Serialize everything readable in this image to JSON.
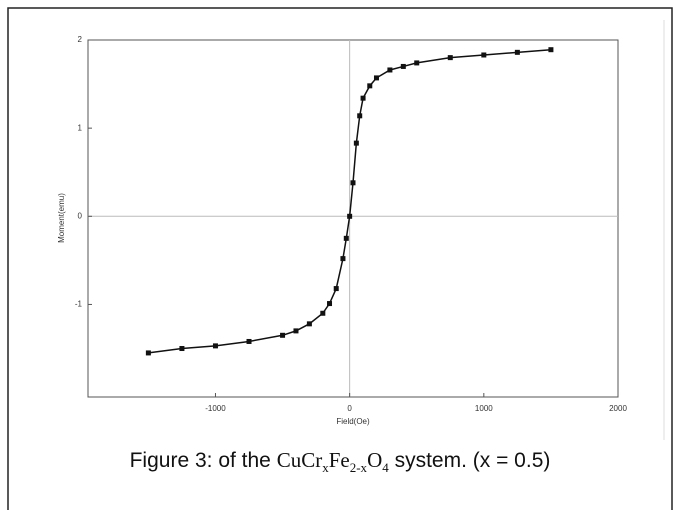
{
  "chart_data": {
    "type": "line",
    "x_label": "Field(Oe)",
    "y_label": "Moment(emu)",
    "x": [
      -1500,
      -1250,
      -1000,
      -750,
      -500,
      -400,
      -300,
      -200,
      -150,
      -100,
      -50,
      -25,
      0,
      25,
      50,
      75,
      100,
      150,
      200,
      300,
      400,
      500,
      750,
      1000,
      1250,
      1500
    ],
    "series": [
      {
        "color": "#111111",
        "values": [
          -1.55,
          -1.5,
          -1.47,
          -1.42,
          -1.35,
          -1.3,
          -1.22,
          -1.1,
          -0.99,
          -0.82,
          -0.48,
          -0.25,
          0,
          0.38,
          0.83,
          1.14,
          1.34,
          1.48,
          1.57,
          1.66,
          1.7,
          1.74,
          1.8,
          1.83,
          1.86,
          1.89
        ]
      }
    ],
    "xlim": [
      -1950,
      2000
    ],
    "xticks": [
      -1000,
      0,
      1000,
      2000
    ],
    "ylim": [
      -2.05,
      2
    ],
    "yticks": [
      -1,
      0,
      1,
      2
    ],
    "grid": false
  },
  "caption": {
    "prefix": "Figure 3: of the",
    "formula": [
      {
        "base": "Cu"
      },
      {
        "base": "Cr",
        "sub": "x"
      },
      {
        "base": "Fe",
        "sub": "2-x"
      },
      {
        "base": "O",
        "sub": "4"
      }
    ],
    "suffix": "system. (x = 0.5)"
  }
}
